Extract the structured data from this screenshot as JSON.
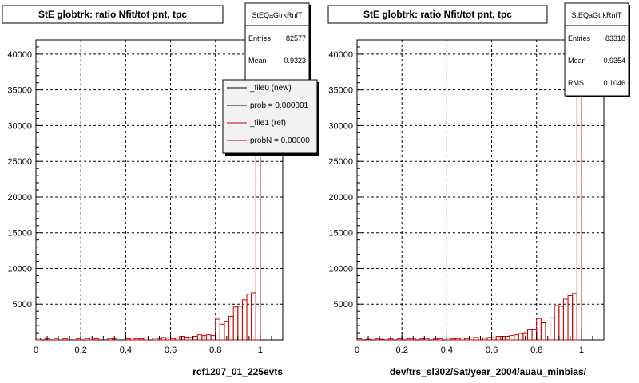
{
  "chart_data": [
    {
      "type": "histogram",
      "title": "StE globtrk: ratio Nfit/tot pnt, tpc",
      "xlabel": "rcf1207_01_225evts",
      "xlim": [
        0,
        1.1
      ],
      "ylim": [
        0,
        42000
      ],
      "x_ticks": [
        "0",
        "0.2",
        "0.4",
        "0.6",
        "0.8",
        "1"
      ],
      "y_ticks": [
        "5000",
        "10000",
        "15000",
        "20000",
        "25000",
        "30000",
        "35000",
        "40000"
      ],
      "grid": true,
      "stats": {
        "name": "StEQaGtrkRnfT",
        "rows": [
          {
            "label": "Entries",
            "value": "82577"
          },
          {
            "label": "Mean",
            "value": "0.9323"
          }
        ]
      },
      "legend": {
        "placement": "top-right",
        "entries": [
          {
            "label": "_file0 (new)",
            "color": "#000000"
          },
          {
            "label": "prob = 0.000001",
            "color": "#000000"
          },
          {
            "label": "_file1 (ref)",
            "color": "#cc0000"
          },
          {
            "label": "probN = 0.00000",
            "color": "#cc0000"
          }
        ]
      },
      "series": [
        {
          "color": "#cc0000",
          "bins": [
            [
              0.0,
              0.02,
              250
            ],
            [
              0.02,
              0.04,
              0
            ],
            [
              0.04,
              0.06,
              150
            ],
            [
              0.06,
              0.08,
              0
            ],
            [
              0.08,
              0.1,
              200
            ],
            [
              0.1,
              0.12,
              0
            ],
            [
              0.12,
              0.14,
              150
            ],
            [
              0.14,
              0.16,
              0
            ],
            [
              0.16,
              0.18,
              0
            ],
            [
              0.18,
              0.2,
              150
            ],
            [
              0.2,
              0.22,
              0
            ],
            [
              0.22,
              0.24,
              200
            ],
            [
              0.24,
              0.26,
              300
            ],
            [
              0.26,
              0.28,
              150
            ],
            [
              0.28,
              0.3,
              0
            ],
            [
              0.3,
              0.32,
              0
            ],
            [
              0.32,
              0.34,
              200
            ],
            [
              0.34,
              0.36,
              150
            ],
            [
              0.36,
              0.38,
              0
            ],
            [
              0.38,
              0.4,
              0
            ],
            [
              0.4,
              0.42,
              150
            ],
            [
              0.42,
              0.44,
              250
            ],
            [
              0.44,
              0.46,
              200
            ],
            [
              0.46,
              0.48,
              150
            ],
            [
              0.48,
              0.5,
              300
            ],
            [
              0.5,
              0.52,
              0
            ],
            [
              0.52,
              0.54,
              250
            ],
            [
              0.54,
              0.56,
              200
            ],
            [
              0.56,
              0.58,
              350
            ],
            [
              0.58,
              0.6,
              300
            ],
            [
              0.6,
              0.62,
              200
            ],
            [
              0.62,
              0.64,
              300
            ],
            [
              0.64,
              0.66,
              500
            ],
            [
              0.66,
              0.68,
              400
            ],
            [
              0.68,
              0.7,
              350
            ],
            [
              0.7,
              0.72,
              500
            ],
            [
              0.72,
              0.74,
              700
            ],
            [
              0.74,
              0.76,
              600
            ],
            [
              0.76,
              0.78,
              700
            ],
            [
              0.78,
              0.8,
              600
            ],
            [
              0.8,
              0.82,
              2900
            ],
            [
              0.82,
              0.84,
              2200
            ],
            [
              0.84,
              0.86,
              2600
            ],
            [
              0.86,
              0.88,
              3300
            ],
            [
              0.88,
              0.9,
              4600
            ],
            [
              0.9,
              0.92,
              4700
            ],
            [
              0.92,
              0.94,
              5600
            ],
            [
              0.94,
              0.96,
              6400
            ],
            [
              0.96,
              0.98,
              6600
            ],
            [
              0.98,
              1.0,
              40000
            ]
          ]
        }
      ]
    },
    {
      "type": "histogram",
      "title": "StE globtrk: ratio Nfit/tot pnt, tpc",
      "xlabel": "dev/trs_sl302/Sat/year_2004/auau_minbias/",
      "xlim": [
        0,
        1.1
      ],
      "ylim": [
        0,
        42000
      ],
      "x_ticks": [
        "0",
        "0.2",
        "0.4",
        "0.6",
        "0.8",
        "1"
      ],
      "y_ticks": [
        "5000",
        "10000",
        "15000",
        "20000",
        "25000",
        "30000",
        "35000",
        "40000"
      ],
      "grid": true,
      "stats": {
        "name": "StEQaGtrkRnfT",
        "rows": [
          {
            "label": "Entries",
            "value": "83318"
          },
          {
            "label": "Mean",
            "value": "0.9354"
          },
          {
            "label": "RMS",
            "value": "0.1046"
          }
        ]
      },
      "series": [
        {
          "color": "#cc0000",
          "bins": [
            [
              0.0,
              0.02,
              150
            ],
            [
              0.02,
              0.04,
              0
            ],
            [
              0.04,
              0.06,
              100
            ],
            [
              0.06,
              0.08,
              0
            ],
            [
              0.08,
              0.1,
              150
            ],
            [
              0.1,
              0.12,
              100
            ],
            [
              0.12,
              0.14,
              0
            ],
            [
              0.14,
              0.16,
              150
            ],
            [
              0.16,
              0.18,
              0
            ],
            [
              0.18,
              0.2,
              150
            ],
            [
              0.2,
              0.22,
              0
            ],
            [
              0.22,
              0.24,
              150
            ],
            [
              0.24,
              0.26,
              200
            ],
            [
              0.26,
              0.28,
              0
            ],
            [
              0.28,
              0.3,
              150
            ],
            [
              0.3,
              0.32,
              200
            ],
            [
              0.32,
              0.34,
              0
            ],
            [
              0.34,
              0.36,
              150
            ],
            [
              0.36,
              0.38,
              200
            ],
            [
              0.38,
              0.4,
              0
            ],
            [
              0.4,
              0.42,
              250
            ],
            [
              0.42,
              0.44,
              150
            ],
            [
              0.44,
              0.46,
              200
            ],
            [
              0.46,
              0.48,
              300
            ],
            [
              0.48,
              0.5,
              200
            ],
            [
              0.5,
              0.52,
              300
            ],
            [
              0.52,
              0.54,
              350
            ],
            [
              0.54,
              0.56,
              300
            ],
            [
              0.56,
              0.58,
              250
            ],
            [
              0.58,
              0.6,
              350
            ],
            [
              0.6,
              0.62,
              300
            ],
            [
              0.62,
              0.64,
              500
            ],
            [
              0.64,
              0.66,
              500
            ],
            [
              0.66,
              0.68,
              500
            ],
            [
              0.68,
              0.7,
              600
            ],
            [
              0.7,
              0.72,
              700
            ],
            [
              0.72,
              0.74,
              900
            ],
            [
              0.74,
              0.76,
              1000
            ],
            [
              0.76,
              0.78,
              1500
            ],
            [
              0.78,
              0.8,
              1500
            ],
            [
              0.8,
              0.82,
              3000
            ],
            [
              0.82,
              0.84,
              2400
            ],
            [
              0.84,
              0.86,
              2500
            ],
            [
              0.86,
              0.88,
              3100
            ],
            [
              0.88,
              0.9,
              4800
            ],
            [
              0.9,
              0.92,
              4700
            ],
            [
              0.92,
              0.94,
              5700
            ],
            [
              0.94,
              0.96,
              6200
            ],
            [
              0.96,
              0.98,
              6500
            ],
            [
              0.98,
              1.0,
              42000
            ]
          ]
        }
      ]
    }
  ]
}
